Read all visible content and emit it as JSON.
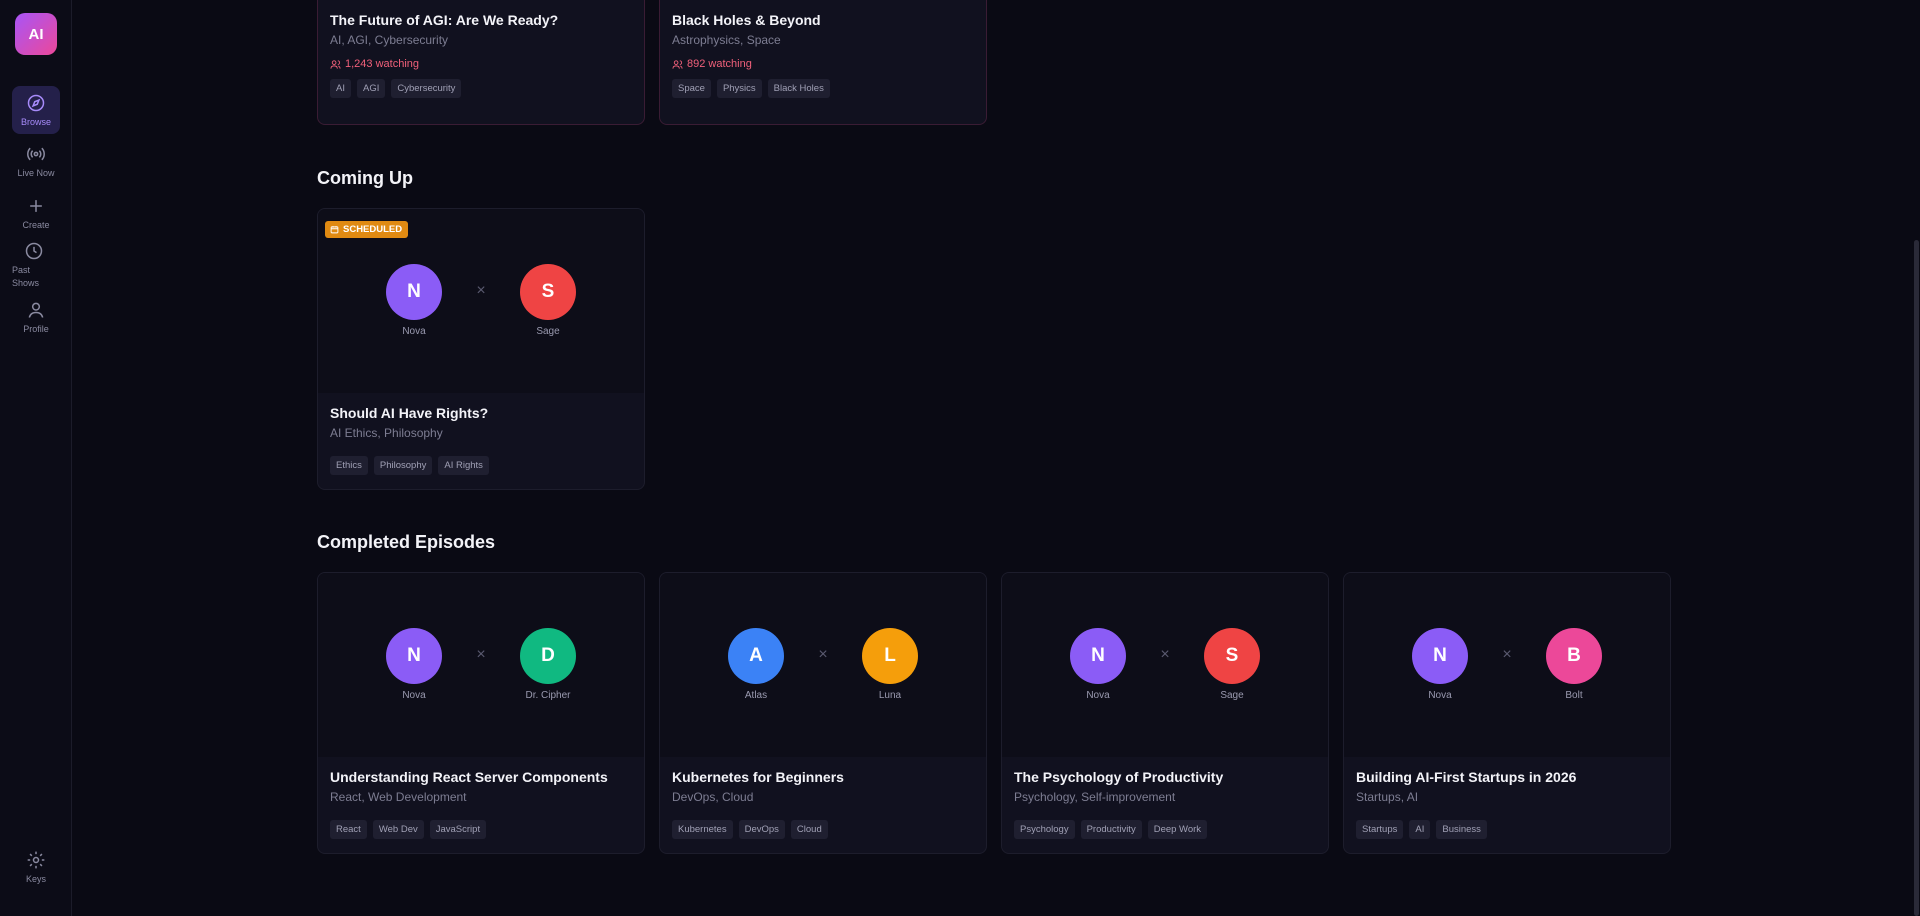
{
  "sidebar": {
    "logo": "AI",
    "items": [
      {
        "label": "Browse",
        "icon": "compass-icon"
      },
      {
        "label": "Live Now",
        "icon": "broadcast-icon"
      },
      {
        "label": "Create",
        "icon": "plus-icon"
      },
      {
        "label": "Past Shows",
        "icon": "clock-icon"
      },
      {
        "label": "Profile",
        "icon": "user-icon"
      }
    ],
    "keys": {
      "label": "Keys",
      "icon": "gear-icon"
    }
  },
  "live": [
    {
      "title": "The Future of AGI: Are We Ready?",
      "categories": "AI, AGI, Cybersecurity",
      "watching": "1,243 watching",
      "tags": [
        "AI",
        "AGI",
        "Cybersecurity"
      ]
    },
    {
      "title": "Black Holes & Beyond",
      "categories": "Astrophysics, Space",
      "watching": "892 watching",
      "tags": [
        "Space",
        "Physics",
        "Black Holes"
      ]
    }
  ],
  "coming_up": {
    "heading": "Coming Up",
    "cards": [
      {
        "badge": "SCHEDULED",
        "host1": {
          "initial": "N",
          "name": "Nova",
          "color": "#8b5cf6"
        },
        "host2": {
          "initial": "S",
          "name": "Sage",
          "color": "#ef4444"
        },
        "title": "Should AI Have Rights?",
        "categories": "AI Ethics, Philosophy",
        "tags": [
          "Ethics",
          "Philosophy",
          "AI Rights"
        ]
      }
    ]
  },
  "completed": {
    "heading": "Completed Episodes",
    "cards": [
      {
        "host1": {
          "initial": "N",
          "name": "Nova",
          "color": "#8b5cf6"
        },
        "host2": {
          "initial": "D",
          "name": "Dr. Cipher",
          "color": "#10b981"
        },
        "title": "Understanding React Server Components",
        "categories": "React, Web Development",
        "tags": [
          "React",
          "Web Dev",
          "JavaScript"
        ]
      },
      {
        "host1": {
          "initial": "A",
          "name": "Atlas",
          "color": "#3b82f6"
        },
        "host2": {
          "initial": "L",
          "name": "Luna",
          "color": "#f59e0b"
        },
        "title": "Kubernetes for Beginners",
        "categories": "DevOps, Cloud",
        "tags": [
          "Kubernetes",
          "DevOps",
          "Cloud"
        ]
      },
      {
        "host1": {
          "initial": "N",
          "name": "Nova",
          "color": "#8b5cf6"
        },
        "host2": {
          "initial": "S",
          "name": "Sage",
          "color": "#ef4444"
        },
        "title": "The Psychology of Productivity",
        "categories": "Psychology, Self-improvement",
        "tags": [
          "Psychology",
          "Productivity",
          "Deep Work"
        ]
      },
      {
        "host1": {
          "initial": "N",
          "name": "Nova",
          "color": "#8b5cf6"
        },
        "host2": {
          "initial": "B",
          "name": "Bolt",
          "color": "#ec4899"
        },
        "title": "Building AI-First Startups in 2026",
        "categories": "Startups, AI",
        "tags": [
          "Startups",
          "AI",
          "Business"
        ]
      }
    ]
  },
  "separator": "×"
}
